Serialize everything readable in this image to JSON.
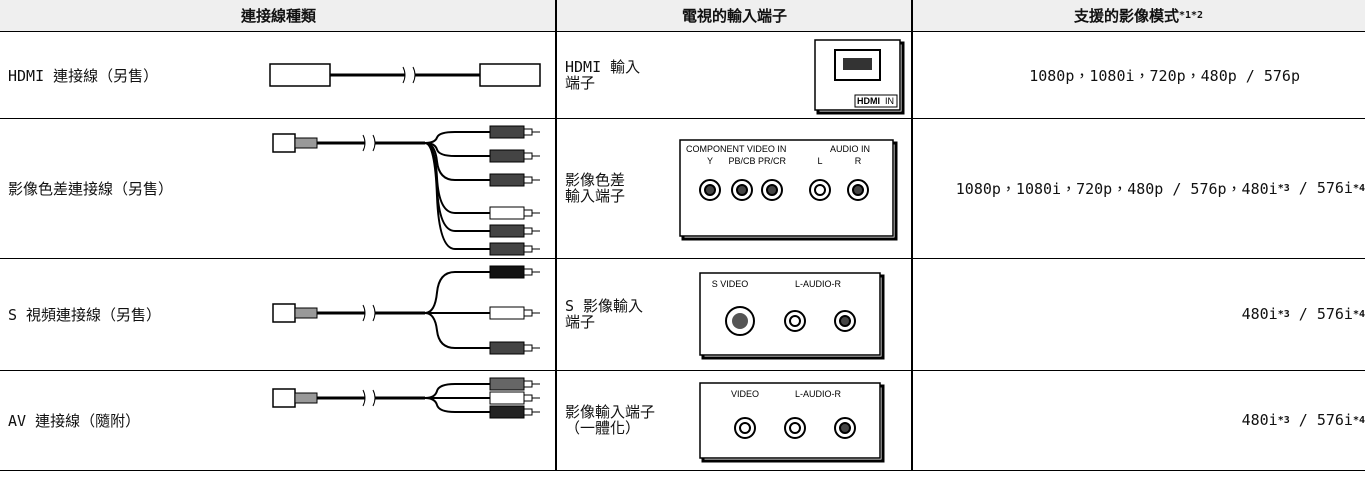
{
  "header": {
    "col1": "連接線種類",
    "col2": "電視的輸入端子",
    "col3": {
      "text": "支援的影像模式",
      "sup": "*1*2"
    }
  },
  "rows": [
    {
      "cable": "HDMI 連接線（另售）",
      "input": [
        "HDMI 輸入",
        "端子"
      ],
      "port_labels": [
        "HDMI",
        "IN"
      ],
      "modes": [
        {
          "text": "1080p，1080i，720p，480p / 576p"
        }
      ]
    },
    {
      "cable": "影像色差連接線（另售）",
      "input": [
        "影像色差",
        "輸入端子"
      ],
      "port_labels": [
        "COMPONENT VIDEO IN",
        "AUDIO IN",
        "Y",
        "PB/CB",
        "PR/CR",
        "L",
        "R"
      ],
      "modes": [
        {
          "text": "1080p，1080i，720p，480p / 576p，480i"
        },
        {
          "sup": "*3"
        },
        {
          "text": " / 576i"
        },
        {
          "sup": "*4"
        }
      ]
    },
    {
      "cable": "S 視頻連接線（另售）",
      "input": [
        "S 影像輸入",
        "端子"
      ],
      "port_labels": [
        "S VIDEO",
        "L-AUDIO-R"
      ],
      "modes": [
        {
          "text": "480i"
        },
        {
          "sup": "*3"
        },
        {
          "text": " / 576i"
        },
        {
          "sup": "*4"
        }
      ]
    },
    {
      "cable": "AV 連接線（隨附）",
      "input": [
        "影像輸入端子",
        "（一體化）"
      ],
      "port_labels": [
        "VIDEO",
        "L-AUDIO-R"
      ],
      "modes": [
        {
          "text": "480i"
        },
        {
          "sup": "*3"
        },
        {
          "text": " / 576i"
        },
        {
          "sup": "*4"
        }
      ]
    }
  ]
}
